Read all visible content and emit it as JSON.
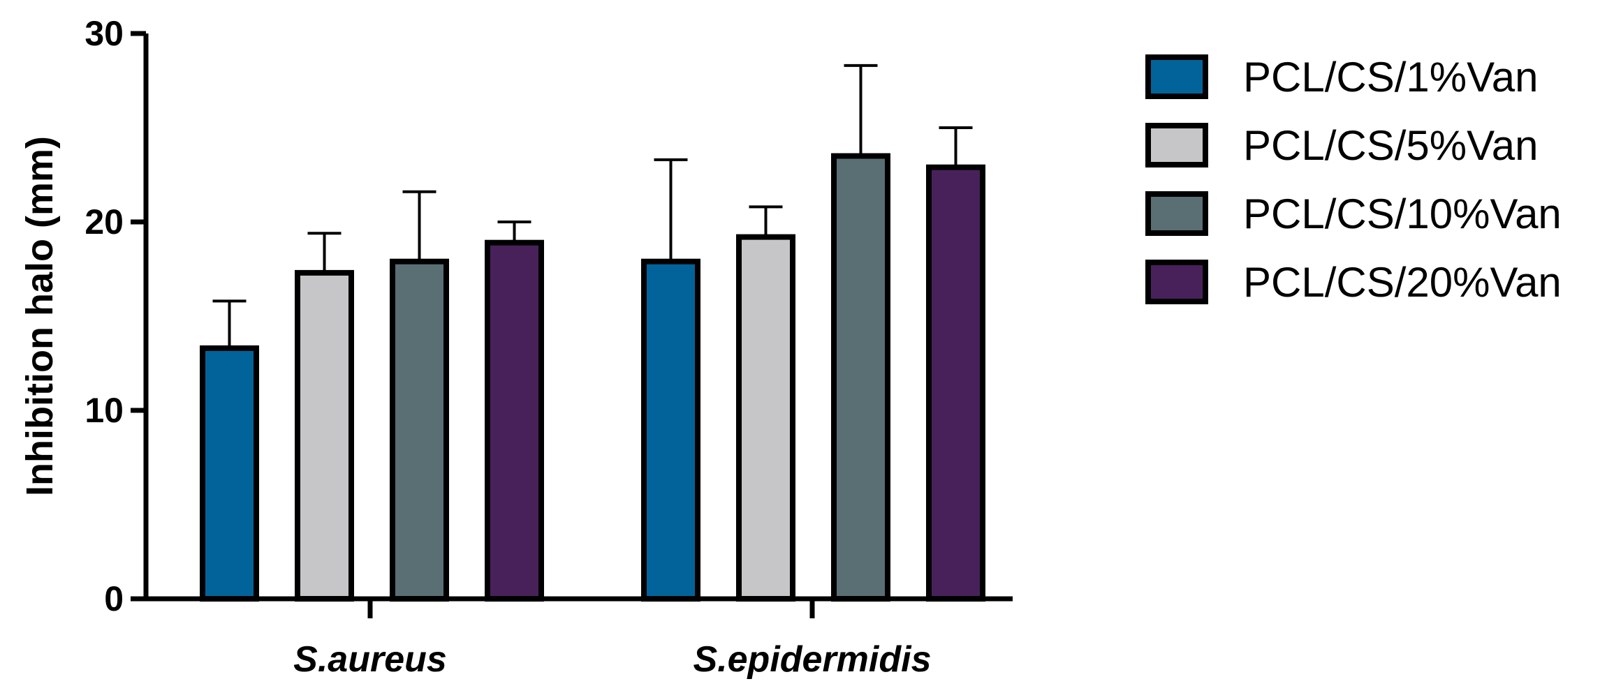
{
  "chart_data": {
    "type": "bar",
    "title": "",
    "xlabel": "",
    "ylabel": "Inhibition halo (mm)",
    "ylim": [
      0,
      30
    ],
    "yticks": [
      0,
      10,
      20,
      30
    ],
    "grid": false,
    "legend_position": "right",
    "categories": [
      "S.aureus",
      "S.epidermidis"
    ],
    "series": [
      {
        "name": "PCL/CS/1%Van",
        "color": "#02639b",
        "values": [
          13.3,
          17.9
        ],
        "errors": [
          2.5,
          5.4
        ]
      },
      {
        "name": "PCL/CS/5%Van",
        "color": "#c6c6c8",
        "values": [
          17.3,
          19.2
        ],
        "errors": [
          2.1,
          1.6
        ]
      },
      {
        "name": "PCL/CS/10%Van",
        "color": "#5a6f73",
        "values": [
          17.9,
          23.5
        ],
        "errors": [
          3.7,
          4.8
        ]
      },
      {
        "name": "PCL/CS/20%Van",
        "color": "#48215a",
        "values": [
          18.9,
          22.9
        ],
        "errors": [
          1.1,
          2.1
        ]
      }
    ]
  }
}
